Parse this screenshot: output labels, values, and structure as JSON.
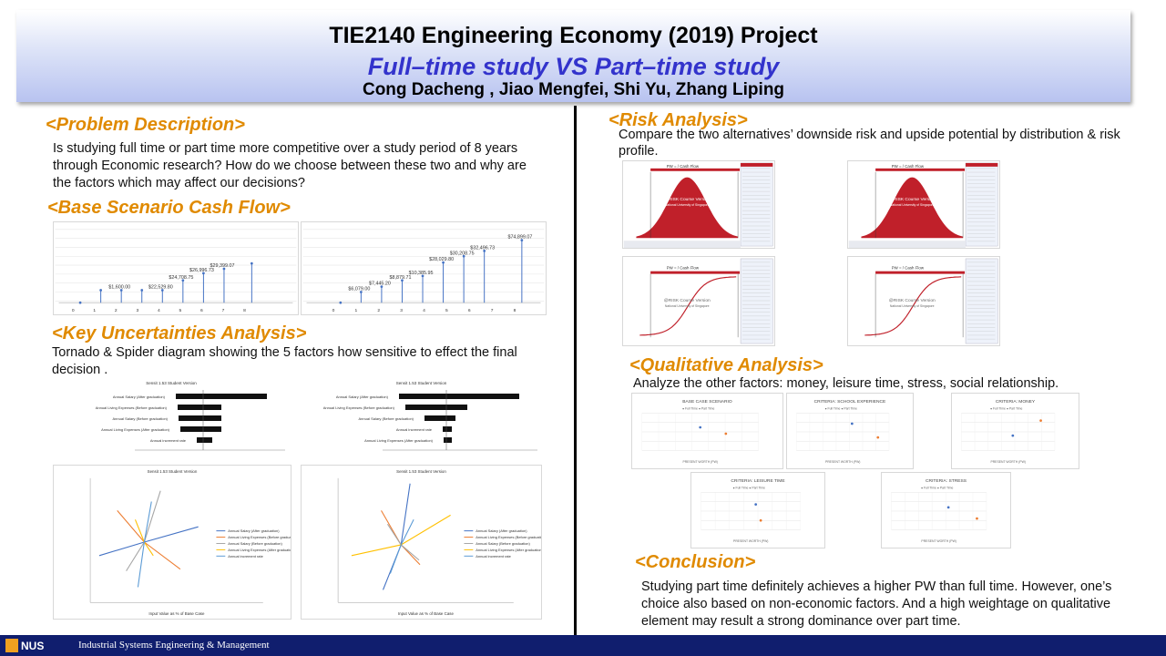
{
  "header": {
    "title": "TIE2140 Engineering Economy (2019) Project",
    "subtitle": "Full–time study VS Part–time study",
    "authors": "Cong Dacheng , Jiao Mengfei, Shi Yu, Zhang Liping"
  },
  "problem": {
    "heading": "<Problem Description>",
    "text": "Is studying full time or part time more competitive over a study period of 8 years through  Economic research? How do we choose between these two and why are the factors which may affect our decisions?"
  },
  "cashflow": {
    "heading": "<Base Scenario Cash Flow>",
    "left_labels": [
      "$1,600.00",
      "$22,529.80",
      "$24,708.75",
      "$26,996.73",
      "$29,399.07"
    ],
    "right_labels": [
      "$6,079.00",
      "$7,445.20",
      "$8,879.71",
      "$10,385.95",
      "$28,029.80",
      "$30,208.75",
      "$32,496.73",
      "$74,899.07"
    ],
    "ticks": [
      "0",
      "1",
      "2",
      "3",
      "4",
      "5",
      "6",
      "7",
      "8"
    ]
  },
  "uncertainty": {
    "heading": "<Key Uncertainties Analysis>",
    "text": "Tornado & Spider diagram showing the 5 factors how sensitive to effect the final decision .",
    "chart_title": "Sensit 1.53 Student Version",
    "tornado_left_factors": [
      "Annual Salary (After graduation)",
      "Annual Living Expenses (Before graduation)",
      "Annual Salary (Before graduation)",
      "Annual Living Expenses (After graduation)",
      "Annual increment rate"
    ],
    "tornado_right_factors": [
      "Annual Salary (After graduation)",
      "Annual Living Expenses (Before graduation)",
      "Annual Salary (Before graduation)",
      "Annual increment rate",
      "Annual Living Expenses (After graduation)"
    ],
    "spider_legend": [
      "Annual Salary (After graduation)",
      "Annual Living Expenses (Before graduation)",
      "Annual Salary (Before graduation)",
      "Annual Living Expenses (After graduation)",
      "Annual increment rate"
    ],
    "spider_axis": "Input Value as % of Base Case"
  },
  "risk": {
    "heading": "<Risk Analysis>",
    "text": "Compare the two alternatives’ downside risk and upside potential by distribution & risk profile.",
    "chart_title": "PW = / Cash Flow",
    "watermark": "@RISK Course Version",
    "watermark_sub": "National University of Singapore"
  },
  "qualitative": {
    "heading": "<Qualitative Analysis>",
    "text": "Analyze the other factors: money, leisure time, stress, social relationship.",
    "charts": [
      "BASE CASE SCENARIO",
      "CRITERIA: SCHOOL EXPERIENCE",
      "CRITERIA: MONEY",
      "CRITERIA: LEISURE TIME",
      "CRITERIA: STRESS"
    ],
    "legend": [
      "Full Time",
      "Part Time"
    ],
    "xlabel": "PRESENT WORTH (PW)"
  },
  "conclusion": {
    "heading": "<Conclusion>",
    "text": "Studying part time definitely achieves a higher PW than full time. However, one’s choice also based on non-economic factors. And a high weightage on qualitative element may result a strong dominance over part time."
  },
  "footer": {
    "logo": "NUS",
    "dept": "Industrial Systems Engineering & Management"
  },
  "colors": {
    "heading": "#e08a00",
    "subtitle": "#3333cc",
    "footer": "#101e6e",
    "risk_fill": "#c0202a",
    "full_time": "#4472c4",
    "part_time": "#ed7d31"
  }
}
